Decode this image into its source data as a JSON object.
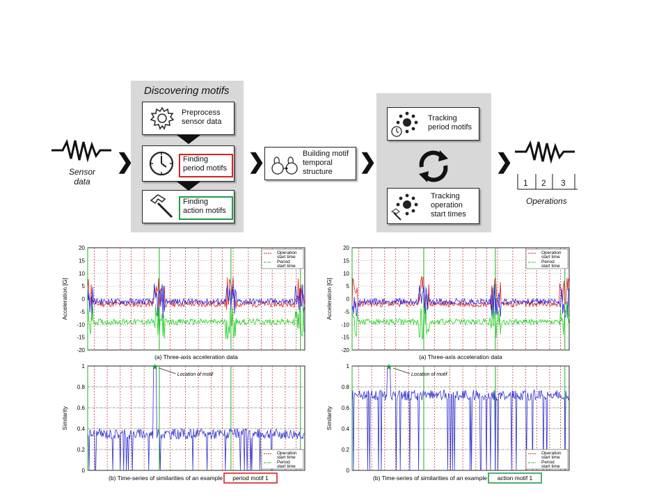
{
  "pipeline": {
    "sensor_label_1": "Sensor",
    "sensor_label_2": "data",
    "discover_title": "Discovering motifs",
    "preprocess": [
      "Preprocess",
      "sensor data"
    ],
    "period": [
      "Finding",
      "period motifs"
    ],
    "action": [
      "Finding",
      "action motifs"
    ],
    "building": [
      "Building motif",
      "temporal",
      "structure"
    ],
    "tracking_period": [
      "Tracking",
      "period motifs"
    ],
    "tracking_operation": [
      "Tracking",
      "operation",
      "start times"
    ],
    "ops_numbers": [
      "1",
      "2",
      "3"
    ],
    "operations_label": "Operations",
    "colors": {
      "red_box": "#d92020",
      "green_box": "#1f9a4a",
      "panel": "#d8d8d8"
    }
  },
  "chart_data": [
    {
      "type": "line",
      "caption": "(a) Three-axis acceleration data",
      "ylabel": "Acceleration [G]",
      "ylim": [
        -20,
        20
      ],
      "yticks": [
        "20",
        "15",
        "10",
        "5",
        "0",
        "-5",
        "-10",
        "-15",
        "-20"
      ],
      "legend": [
        "Operation",
        "start time",
        "Period",
        "start time"
      ],
      "series": [
        {
          "color": "#d62020",
          "baseline": -2
        },
        {
          "color": "#2020e0",
          "baseline": -1
        },
        {
          "color": "#20d020",
          "baseline": -9
        }
      ]
    },
    {
      "type": "line",
      "caption": "(a) Three-axis acceleration data",
      "ylabel": "Acceleration [G]",
      "ylim": [
        -20,
        20
      ],
      "yticks": [
        "20",
        "15",
        "10",
        "5",
        "0",
        "-5",
        "-10",
        "-15",
        "-20"
      ],
      "legend": [
        "Operation",
        "start time",
        "Period",
        "start time"
      ],
      "series": [
        {
          "color": "#d62020",
          "baseline": -2
        },
        {
          "color": "#2020e0",
          "baseline": -1
        },
        {
          "color": "#20d020",
          "baseline": -9
        }
      ]
    },
    {
      "type": "line",
      "caption_prefix": "(b) Time-series of similarities of an example",
      "caption_highlight": "period motif 1",
      "ylabel": "Similarity",
      "ylim": [
        0,
        1
      ],
      "yticks": [
        "1",
        "0.8",
        "0.6",
        "0.4",
        "0.2",
        "0"
      ],
      "annotation": "Location of motif",
      "legend": [
        "Operation",
        "start time",
        "Period",
        "start time"
      ],
      "typical_level": 0.35
    },
    {
      "type": "line",
      "caption_prefix": "(b) Time-series of similarities of an example",
      "caption_highlight": "action motif 1",
      "ylabel": "Similarity",
      "ylim": [
        0,
        1
      ],
      "yticks": [
        "1",
        "0.8",
        "0.6",
        "0.4",
        "0.2",
        "0"
      ],
      "annotation": "Location of motif",
      "legend": [
        "Operation",
        "start time",
        "Period",
        "start time"
      ],
      "typical_level": 0.72
    }
  ]
}
